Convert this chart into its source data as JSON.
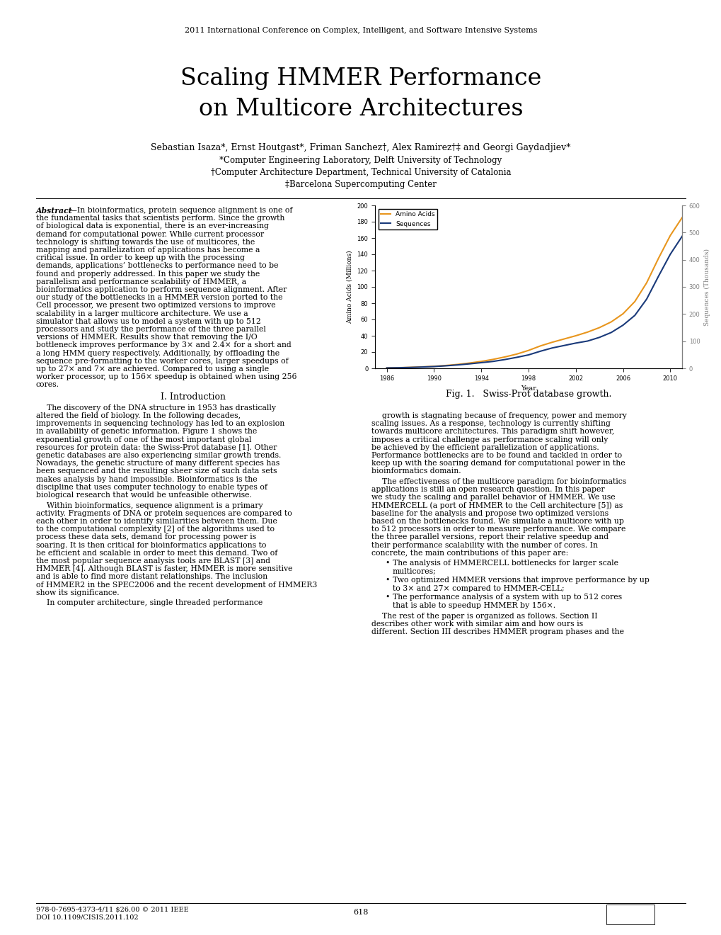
{
  "conference": "2011 International Conference on Complex, Intelligent, and Software Intensive Systems",
  "title_line1": "Scaling HMMER Performance",
  "title_line2": "on Multicore Architectures",
  "authors": "Sebastian Isaza*, Ernst Houtgast*, Friman Sanchez†, Alex Ramirez†‡ and Georgi Gaydadjiev*",
  "affil1": "*Computer Engineering Laboratory, Delft University of Technology",
  "affil2": "†Computer Architecture Department, Technical University of Catalonia",
  "affil3": "‡Barcelona Supercomputing Center",
  "abstract_text": "In bioinformatics, protein sequence alignment is one of the fundamental tasks that scientists perform. Since the growth of biological data is exponential, there is an ever-increasing demand for computational power. While current processor technology is shifting towards the use of multicores, the mapping and parallelization of applications has become a critical issue. In order to keep up with the processing demands, applications’ bottlenecks to performance need to be found and properly addressed. In this paper we study the parallelism and performance scalability of HMMER, a bioinformatics application to perform sequence alignment. After our study of the bottlenecks in a HMMER version ported to the Cell processor, we present two optimized versions to improve scalability in a larger multicore architecture. We use a simulator that allows us to model a system with up to 512 processors and study the performance of the three parallel versions of HMMER. Results show that removing the I/O bottleneck improves performance by 3× and 2.4× for a short and a long HMM query respectively. Additionally, by offloading the sequence pre-formatting to the worker cores, larger speedups of up to 27× and 7× are achieved. Compared to using a single worker processor, up to 156× speedup is obtained when using 256 cores.",
  "section1_title": "I. Introduction",
  "intro_para1": "The discovery of the DNA structure in 1953 has drastically altered the field of biology. In the following decades, improvements in sequencing technology has led to an explosion in availability of genetic information. Figure 1 shows the exponential growth of one of the most important global resources for protein data: the Swiss-Prot database [1]. Other genetic databases are also experiencing similar growth trends. Nowadays, the genetic structure of many different species has been sequenced and the resulting sheer size of such data sets makes analysis by hand impossible. Bioinformatics is the discipline that uses computer technology to enable types of biological research that would be unfeasible otherwise.",
  "intro_para2": "Within bioinformatics, sequence alignment is a primary activity. Fragments of DNA or protein sequences are compared to each other in order to identify similarities between them. Due to the computational complexity [2] of the algorithms used to process these data sets, demand for processing power is soaring. It is then critical for bioinformatics applications to be efficient and scalable in order to meet this demand. Two of the most popular sequence analysis tools are BLAST [3] and HMMER [4]. Although BLAST is faster, HMMER is more sensitive and is able to find more distant relationships. The inclusion of HMMER2 in the SPEC2006 and the recent development of HMMER3 show its significance.",
  "intro_para3": "In computer architecture, single threaded performance",
  "right_para1": "growth is stagnating because of frequency, power and memory scaling issues. As a response, technology is currently shifting towards multicore architectures. This paradigm shift however, imposes a critical challenge as performance scaling will only be achieved by the efficient parallelization of applications. Performance bottlenecks are to be found and tackled in order to keep up with the soaring demand for computational power in the bioinformatics domain.",
  "right_para2": "The effectiveness of the multicore paradigm for bioinformatics applications is still an open research question. In this paper we study the scaling and parallel behavior of HMMER. We use HMMERCELL (a port of HMMER to the Cell architecture [5]) as baseline for the analysis and propose two optimized versions based on the bottlenecks found. We simulate a multicore with up to 512 processors in order to measure performance. We compare the three parallel versions, report their relative speedup and their performance scalability with the number of cores. In concrete, the main contributions of this paper are:",
  "bullet1": "The analysis of HMMERCELL bottlenecks for larger scale multicores;",
  "bullet2": "Two optimized HMMER versions that improve performance by up to 3× and 27× compared to HMMER-CELL;",
  "bullet3": "The performance analysis of a system with up to 512 cores that is able to speedup HMMER by 156×.",
  "right_para3": "The rest of the paper is organized as follows. Section II describes other work with similar aim and how ours is different. Section III describes HMMER program phases and the",
  "fig_caption": "Fig. 1.   Swiss-Prot database growth.",
  "footer_left1": "978-0-7695-4373-4/11 $26.00 © 2011 IEEE",
  "footer_left2": "DOI 10.1109/CISIS.2011.102",
  "footer_center": "618",
  "chart_years": [
    1986,
    1987,
    1988,
    1989,
    1990,
    1991,
    1992,
    1993,
    1994,
    1995,
    1996,
    1997,
    1998,
    1999,
    2000,
    2001,
    2002,
    2003,
    2004,
    2005,
    2006,
    2007,
    2008,
    2009,
    2010,
    2011
  ],
  "amino_acids": [
    0.5,
    0.8,
    1.2,
    1.8,
    2.5,
    3.5,
    4.8,
    6.5,
    8.5,
    11.0,
    14.0,
    17.5,
    22.0,
    27.5,
    32.0,
    36.0,
    40.0,
    44.5,
    50.0,
    57.0,
    67.0,
    82.0,
    105.0,
    135.0,
    163.0,
    185.0
  ],
  "sequences_thousands": [
    1.5,
    2.1,
    3.3,
    4.8,
    6.6,
    9.3,
    12.6,
    16.5,
    21.0,
    25.5,
    32.4,
    40.5,
    49.5,
    63.0,
    75.0,
    84.0,
    93.0,
    100.5,
    114.0,
    132.0,
    159.0,
    195.0,
    255.0,
    339.0,
    420.0,
    486.0
  ],
  "amino_color": "#E8961E",
  "seq_color": "#1a3a7a",
  "yticks_left": [
    0,
    20,
    40,
    60,
    80,
    100,
    120,
    140,
    160,
    180,
    200
  ],
  "yticks_right": [
    0,
    100,
    200,
    300,
    400,
    500,
    600
  ],
  "xticks": [
    1986,
    1990,
    1994,
    1998,
    2002,
    2006,
    2010
  ],
  "background_color": "#ffffff"
}
